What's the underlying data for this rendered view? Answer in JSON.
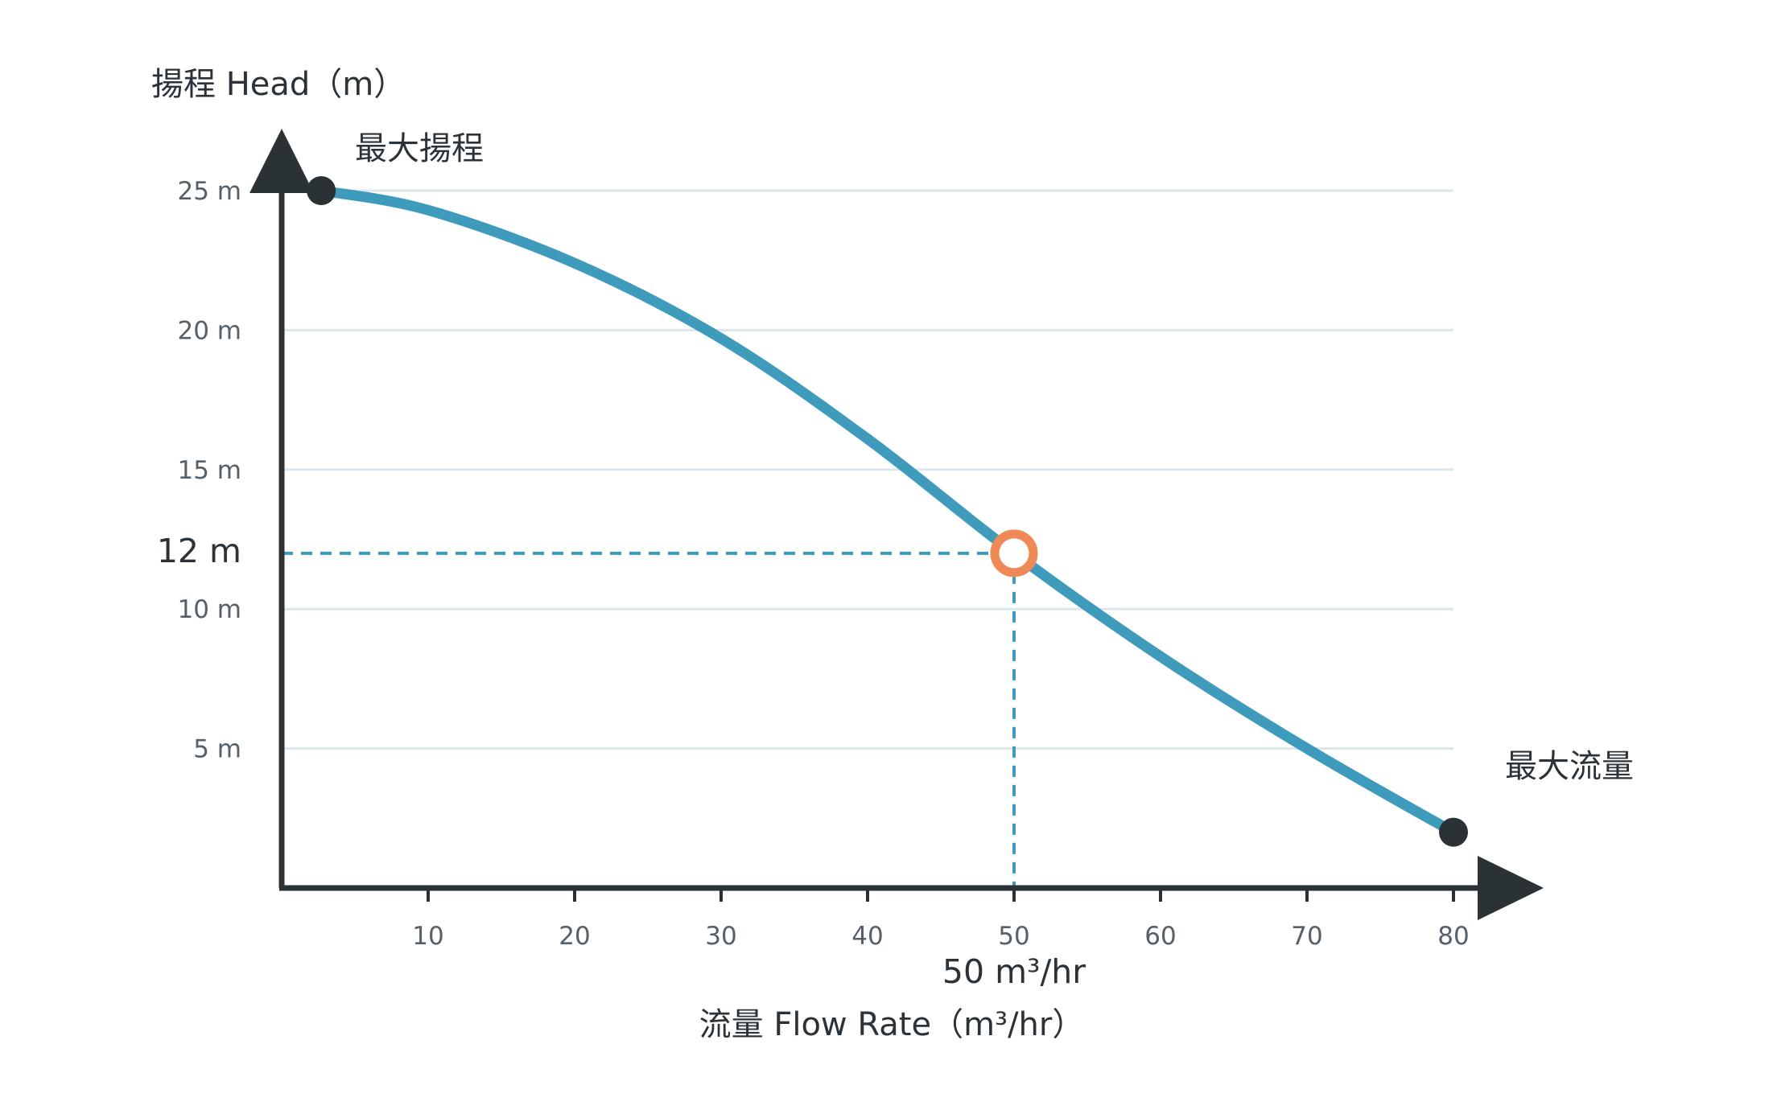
{
  "colors": {
    "curve": "#3f9bbb",
    "axis": "#2a3236",
    "grid": "#dce7ea",
    "operating_point": "#ef8a58",
    "guide": "#3f9bbb",
    "end_point": "#2a3236"
  },
  "chart_data": {
    "type": "line",
    "ylabel": "揚程 Head（m）",
    "xlabel": "流量 Flow Rate（m³/hr）",
    "xlim": [
      0,
      80
    ],
    "ylim": [
      0,
      25
    ],
    "grid": true,
    "x_ticks": [
      10,
      20,
      30,
      40,
      50,
      60,
      70,
      80
    ],
    "x_tick_labels": [
      "10",
      "20",
      "30",
      "40",
      "50",
      "60",
      "70",
      "80"
    ],
    "y_ticks": [
      5,
      10,
      15,
      20,
      25
    ],
    "y_tick_labels": [
      "5 m",
      "10 m",
      "15 m",
      "20 m",
      "25 m"
    ],
    "series": [
      {
        "x": [
          2.7,
          10,
          20,
          30,
          40,
          50,
          60,
          70,
          80
        ],
        "y": [
          25,
          24.3,
          22.4,
          19.7,
          16.1,
          12,
          8.3,
          5.0,
          2.0
        ]
      }
    ],
    "annotations": {
      "max_head": {
        "label": "最大揚程",
        "x": 2.7,
        "y": 25
      },
      "max_flow": {
        "label": "最大流量",
        "x": 80,
        "y": 2.0
      }
    },
    "operating_point": {
      "x": 50,
      "y": 12,
      "x_label": "50 m³/hr",
      "y_label": "12 m"
    }
  }
}
